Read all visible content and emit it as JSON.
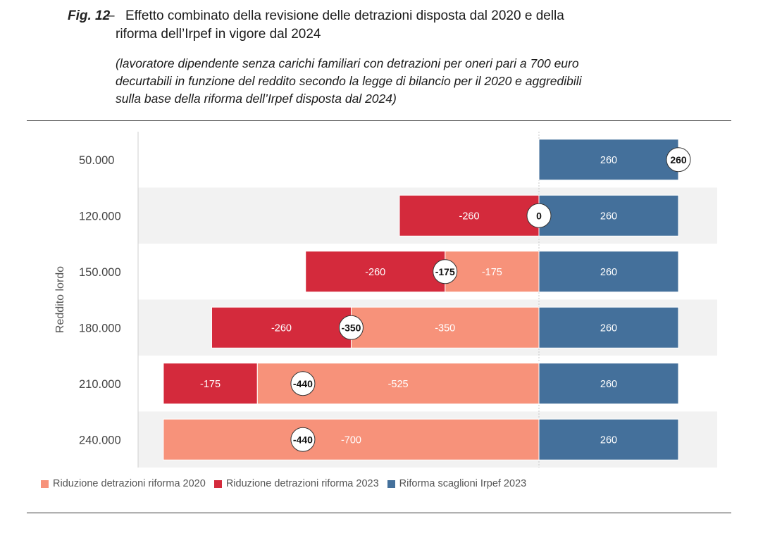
{
  "caption": {
    "fig_label": "Fig. 12",
    "dash": "–",
    "title_line1": "Effetto combinato della revisione delle detrazioni disposta dal 2020 e della",
    "title_line2": "riforma dell’Irpef in vigore dal 2024",
    "subtitle_line1": "(lavoratore dipendente senza carichi familiari con detrazioni per oneri pari a 700 euro",
    "subtitle_line2": "decurtabili in funzione del reddito secondo la legge di bilancio per il 2020 e aggredibili",
    "subtitle_line3": "sulla base della riforma dell’Irpef disposta dal 2024)"
  },
  "chart_data": {
    "type": "bar",
    "orientation": "horizontal",
    "stacked": true,
    "ylabel": "Reddito lordo",
    "categories": [
      "50.000",
      "120.000",
      "150.000",
      "180.000",
      "210.000",
      "240.000"
    ],
    "series": [
      {
        "name": "Riduzione detrazioni riforma 2020",
        "color": "#f7927a",
        "values": [
          0,
          0,
          -175,
          -350,
          -525,
          -700
        ],
        "labels": [
          "",
          "",
          "-175",
          "-350",
          "-525",
          "-700"
        ]
      },
      {
        "name": "Riduzione detrazioni riforma 2023",
        "color": "#d42a3c",
        "values": [
          0,
          -260,
          -260,
          -260,
          -175,
          0
        ],
        "labels": [
          "",
          "-260",
          "-260",
          "-260",
          "-175",
          ""
        ]
      },
      {
        "name": "Riforma scaglioni Irpef 2023",
        "color": "#44709b",
        "values": [
          260,
          260,
          260,
          260,
          260,
          260
        ],
        "labels": [
          "260",
          "260",
          "260",
          "260",
          "260",
          "260"
        ]
      }
    ],
    "net_effect": {
      "values": [
        260,
        0,
        -175,
        -350,
        -440,
        -440
      ],
      "labels": [
        "260",
        "0",
        "-175",
        "-350",
        "-440",
        "-440"
      ]
    },
    "xlim": [
      -760,
      330
    ],
    "grid": false,
    "row_banding": true,
    "legend_position": "bottom-left"
  }
}
